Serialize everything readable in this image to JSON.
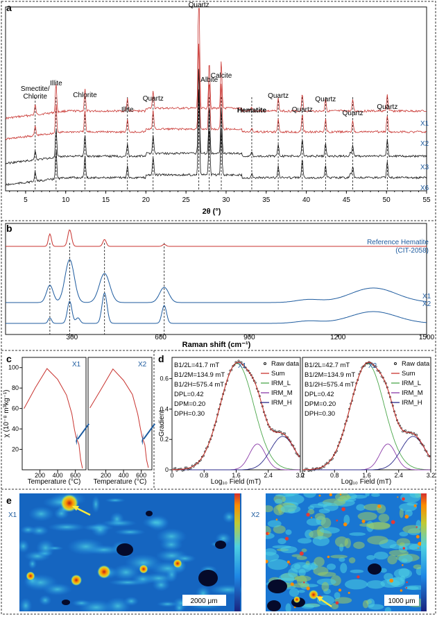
{
  "panel_a": {
    "label": "a",
    "xlabel": "2θ (°)",
    "ticks": [
      "5",
      "10",
      "15",
      "20",
      "25",
      "30",
      "35",
      "40",
      "45",
      "50",
      "55"
    ],
    "series": [
      "X1",
      "X2",
      "X3",
      "X6"
    ],
    "peaks": [
      {
        "label": "Smectite/ Chlorite",
        "x": 6.2
      },
      {
        "label": "Illite",
        "x": 8.8
      },
      {
        "label": "Chlorite",
        "x": 12.4
      },
      {
        "label": "Illite",
        "x": 17.7
      },
      {
        "label": "Quartz",
        "x": 20.9
      },
      {
        "label": "Quartz",
        "x": 26.6
      },
      {
        "label": "Albite",
        "x": 27.9
      },
      {
        "label": "Calcite",
        "x": 29.4
      },
      {
        "label": "Hematite",
        "x": 33.2
      },
      {
        "label": "Quartz",
        "x": 36.5
      },
      {
        "label": "Quartz",
        "x": 39.5
      },
      {
        "label": "Quartz",
        "x": 42.4
      },
      {
        "label": "Quartz",
        "x": 45.8
      },
      {
        "label": "Quartz",
        "x": 50.1
      }
    ]
  },
  "panel_b": {
    "label": "b",
    "xlabel": "Raman shift (cm⁻¹)",
    "ticks": [
      "300",
      "600",
      "900",
      "1200",
      "1500"
    ],
    "reference_label": "Reference Hematite",
    "reference_sub": "(CIT-2058)",
    "series": [
      "X1",
      "X2"
    ],
    "peaks": [
      225,
      292,
      410,
      612
    ]
  },
  "panel_c": {
    "label": "c",
    "ylabel": "χ (10⁻⁸ m³kg⁻¹)",
    "yticks": [
      "20",
      "40",
      "60",
      "80",
      "100"
    ],
    "xticks": [
      "200",
      "400",
      "600"
    ],
    "xlabel": "Temperature (°C)",
    "sub_panels": [
      "X1",
      "X2"
    ]
  },
  "panel_d": {
    "label": "d",
    "ylabel": "Gradient",
    "yticks": [
      "0",
      "0.2",
      "0.4",
      "0.6"
    ],
    "xticks": [
      "0",
      "0.8",
      "1.6",
      "2.4",
      "3.2"
    ],
    "xlabel": "Log₁₀ Field (mT)",
    "legend": [
      "Raw data",
      "Sum",
      "IRM_L",
      "IRM_M",
      "IRM_H"
    ],
    "sub_panels": [
      {
        "title": "X1",
        "params": [
          "B1/2L=41.7 mT",
          "B1/2M=134.9 mT",
          "B1/2H=575.4 mT",
          "DPL=0.42",
          "DPM=0.20",
          "DPH=0.30"
        ]
      },
      {
        "title": "X2",
        "params": [
          "B1/2L=42.7 mT",
          "B1/2M=134.9 mT",
          "B1/2H=575.4 mT",
          "DPL=0.42",
          "DPM=0.20",
          "DPH=0.30"
        ]
      }
    ]
  },
  "panel_e": {
    "label": "e",
    "maps": [
      {
        "title": "X1",
        "scale": "2000 μm"
      },
      {
        "title": "X2",
        "scale": "1000 μm"
      }
    ]
  },
  "colors": {
    "red": "#c8322e",
    "blue": "#1c5a9e",
    "black": "#111111",
    "green": "#4aa64a",
    "purple": "#8a3aa8",
    "navy": "#2a2a8a"
  }
}
